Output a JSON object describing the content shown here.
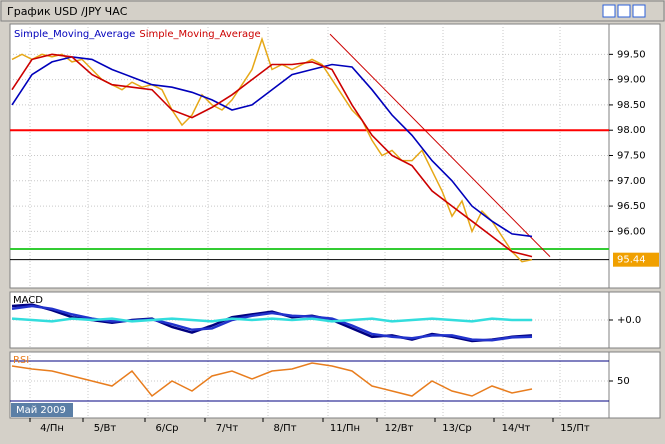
{
  "window_title": "График USD /JPY  ЧАС",
  "time_labels": [
    "4/Пн",
    "5/Вт",
    "6/Ср",
    "7/Чт",
    "8/Пт",
    "11/Пн",
    "12/Вт",
    "13/Ср",
    "14/Чт",
    "15/Пт"
  ],
  "period_label": "Май 2009",
  "chart_data": [
    {
      "type": "line",
      "series": [
        {
          "color": "#e6a817",
          "values": [
            99.4,
            99.5,
            99.4,
            99.5,
            99.45,
            99.5,
            99.35,
            99.4,
            99.2,
            99.0,
            98.9,
            98.8,
            98.95,
            98.85,
            98.9,
            98.8,
            98.4,
            98.1,
            98.3,
            98.7,
            98.5,
            98.4,
            98.6,
            98.9,
            99.2,
            99.8,
            99.2,
            99.3,
            99.2,
            99.3,
            99.4,
            99.3,
            99.0,
            98.7,
            98.4,
            98.2,
            97.8,
            97.5,
            97.6,
            97.4,
            97.4,
            97.6,
            97.2,
            96.8,
            96.3,
            96.6,
            96.0,
            96.4,
            96.2,
            95.9,
            95.6,
            95.4,
            95.44
          ]
        },
        {
          "name": "Simple_Moving_Average",
          "color": "#0000bb",
          "values": [
            98.5,
            99.1,
            99.35,
            99.45,
            99.4,
            99.2,
            99.05,
            98.9,
            98.85,
            98.75,
            98.6,
            98.4,
            98.5,
            98.8,
            99.1,
            99.2,
            99.3,
            99.25,
            98.8,
            98.3,
            97.9,
            97.4,
            97.0,
            96.5,
            96.2,
            95.95,
            95.9
          ]
        },
        {
          "name": "Simple_Moving_Average",
          "color": "#cc0000",
          "values": [
            98.8,
            99.4,
            99.5,
            99.45,
            99.1,
            98.9,
            98.85,
            98.8,
            98.4,
            98.25,
            98.45,
            98.7,
            99.0,
            99.3,
            99.3,
            99.35,
            99.2,
            98.5,
            97.9,
            97.5,
            97.3,
            96.8,
            96.5,
            96.2,
            95.9,
            95.6,
            95.5
          ]
        }
      ],
      "hlines": [
        {
          "value": 98.0,
          "color": "#ff0000"
        },
        {
          "value": 95.65,
          "color": "#33cc33"
        },
        {
          "value": 95.44,
          "color": "#000000"
        }
      ],
      "trendline": {
        "values": [
          99.9,
          95.5
        ],
        "color": "#cc0000"
      },
      "last_price": 95.44,
      "ylim": [
        94.88,
        100.1
      ],
      "yticks": [
        {
          "value": 96,
          "label": "96.00"
        },
        {
          "value": 96.5,
          "label": "96.50"
        },
        {
          "value": 97,
          "label": "97.00"
        },
        {
          "value": 97.5,
          "label": "97.50"
        },
        {
          "value": 98,
          "label": "98.00"
        },
        {
          "value": 98.5,
          "label": "98.50"
        },
        {
          "value": 99,
          "label": "99.00"
        },
        {
          "value": 99.5,
          "label": "99.50"
        }
      ]
    },
    {
      "type": "line",
      "title": "MACD",
      "series": [
        {
          "color": "#000080",
          "values": [
            0.5,
            0.55,
            0.35,
            0.1,
            0.0,
            -0.1,
            0.0,
            0.05,
            -0.25,
            -0.45,
            -0.2,
            0.1,
            0.2,
            0.3,
            0.1,
            0.15,
            0.0,
            -0.3,
            -0.6,
            -0.55,
            -0.7,
            -0.5,
            -0.6,
            -0.75,
            -0.7,
            -0.6,
            -0.55
          ]
        },
        {
          "color": "#2233cc",
          "values": [
            0.4,
            0.5,
            0.4,
            0.2,
            0.05,
            -0.05,
            -0.02,
            0.02,
            -0.15,
            -0.35,
            -0.3,
            0.0,
            0.15,
            0.25,
            0.15,
            0.12,
            0.05,
            -0.2,
            -0.5,
            -0.6,
            -0.65,
            -0.55,
            -0.55,
            -0.7,
            -0.72,
            -0.62,
            -0.6
          ]
        },
        {
          "color": "#33dddd",
          "values": [
            0.05,
            0.0,
            -0.05,
            0.05,
            0.0,
            0.05,
            -0.05,
            0.0,
            0.05,
            0.0,
            -0.05,
            0.05,
            0.0,
            0.05,
            0.0,
            0.05,
            -0.05,
            0.0,
            0.05,
            -0.05,
            0.0,
            0.05,
            0.0,
            -0.05,
            0.05,
            0.0,
            0.0
          ]
        }
      ],
      "ylim": [
        -1,
        1
      ],
      "yticks": [
        {
          "value": 0,
          "label": "+0.0"
        }
      ]
    },
    {
      "type": "line",
      "title": "RSI",
      "series": [
        {
          "color": "#e87d1e",
          "values": [
            65,
            62,
            60,
            55,
            50,
            45,
            60,
            35,
            50,
            40,
            55,
            60,
            52,
            60,
            62,
            68,
            65,
            60,
            45,
            40,
            35,
            50,
            40,
            35,
            45,
            38,
            42
          ]
        }
      ],
      "hlines": [
        {
          "value": 70,
          "color": "#000080"
        },
        {
          "value": 30,
          "color": "#000080"
        }
      ],
      "ylim": [
        13,
        79
      ],
      "yticks": [
        50
      ]
    }
  ]
}
